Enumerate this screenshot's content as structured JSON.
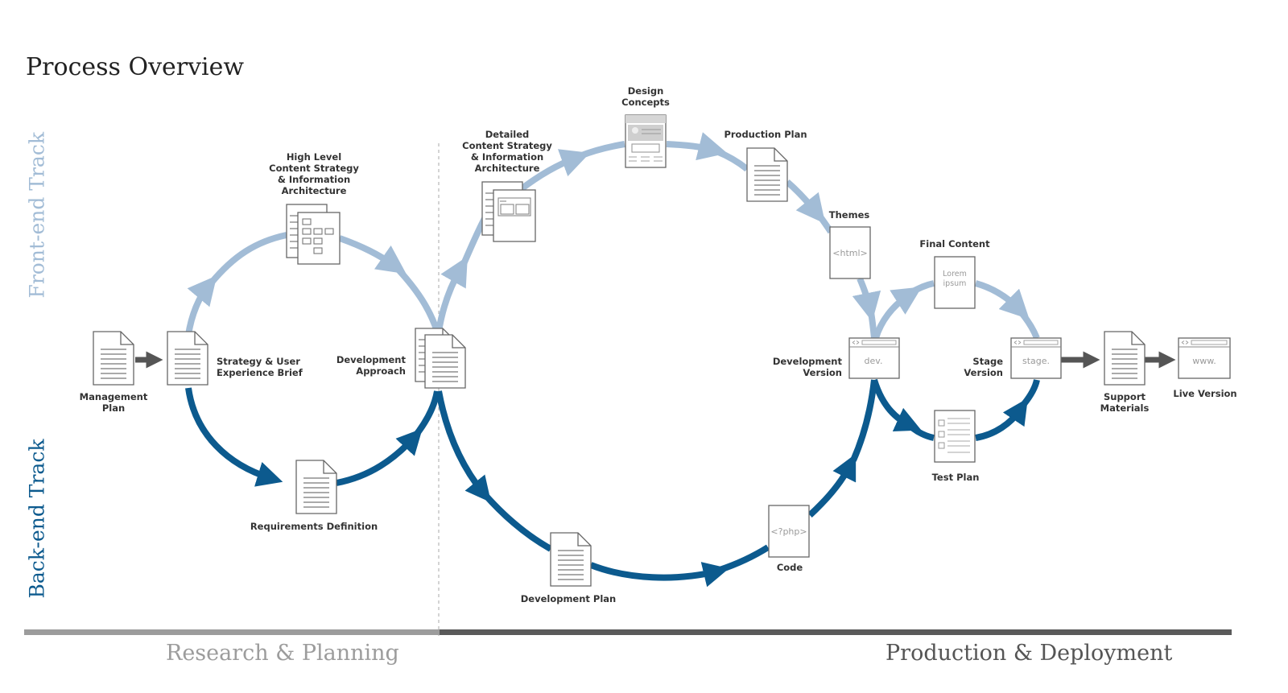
{
  "title": "Process Overview",
  "tracks": {
    "front": "Front-end Track",
    "back": "Back-end Track"
  },
  "phases": {
    "research": "Research & Planning",
    "production": "Production & Deployment"
  },
  "nodes": {
    "management_plan": "Management\nPlan",
    "strategy_brief": "Strategy & User\nExperience Brief",
    "high_level_content": "High Level\nContent Strategy\n& Information\nArchitecture",
    "requirements_definition": "Requirements Definition",
    "development_approach": "Development\nApproach",
    "detailed_content": "Detailed\nContent Strategy\n& Information\nArchitecture",
    "design_concepts": "Design\nConcepts",
    "production_plan": "Production Plan",
    "themes": "Themes",
    "development_plan": "Development Plan",
    "code": "Code",
    "development_version": "Development\nVersion",
    "final_content": "Final Content",
    "test_plan": "Test Plan",
    "stage_version": "Stage\nVersion",
    "support_materials": "Support\nMaterials",
    "live_version": "Live Version"
  },
  "doc_texts": {
    "themes": "<html>",
    "code": "<?php>",
    "dev": "dev.",
    "stage": "stage.",
    "www": "www.",
    "lorem": "Lorem",
    "ipsum": "ipsum"
  },
  "colors": {
    "front_track": "#a2bcd6",
    "back_track": "#0c5a8e",
    "connector": "#555555",
    "research_bar": "#9c9c9c",
    "production_bar": "#5a5a5a"
  }
}
